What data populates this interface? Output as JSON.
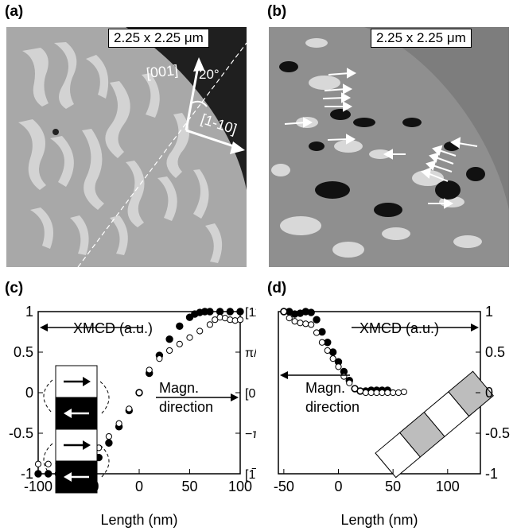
{
  "panels": {
    "a": {
      "label": "(a)",
      "scalebar": "2.25 x 2.25 μm",
      "axis_001": "[001]",
      "axis_1m10": "[1-10]",
      "angle": "20°"
    },
    "b": {
      "label": "(b)",
      "scalebar": "2.25 x 2.25 μm"
    },
    "c": {
      "label": "(c)"
    },
    "d": {
      "label": "(d)"
    }
  },
  "chart_data": [
    {
      "type": "scatter",
      "panel": "c",
      "xlabel": "Length (nm)",
      "xlim": [
        -100,
        100
      ],
      "ylim": [
        -1,
        1
      ],
      "x_ticks": [
        "-100",
        "-50",
        "0",
        "50",
        "100"
      ],
      "y_ticks_left": [
        "-1",
        "-0.5",
        "0",
        "0.5",
        "1"
      ],
      "y_ticks_right": [
        "[1̅10]",
        "−π/4",
        "[001]",
        "π/4",
        "[11̅0]"
      ],
      "annotations": [
        "XMCD (a.u.)",
        "Magn.",
        "direction"
      ],
      "series": [
        {
          "marker": "filled",
          "x": [
            -100,
            -90,
            -80,
            -70,
            -65,
            -60,
            -55,
            -50,
            -45,
            -40,
            -30,
            -20,
            -10,
            0,
            10,
            20,
            30,
            40,
            50,
            55,
            60,
            65,
            70,
            80,
            90,
            100
          ],
          "y": [
            -1,
            -1,
            -1,
            -1,
            -1,
            -1,
            -0.99,
            -0.95,
            -0.88,
            -0.8,
            -0.62,
            -0.42,
            -0.22,
            0,
            0.24,
            0.46,
            0.66,
            0.82,
            0.93,
            0.97,
            0.99,
            1,
            1,
            1,
            1,
            1
          ]
        },
        {
          "marker": "open",
          "x": [
            -100,
            -90,
            -80,
            -70,
            -65,
            -60,
            -55,
            -50,
            -45,
            -40,
            -30,
            -20,
            -10,
            0,
            10,
            20,
            30,
            40,
            50,
            60,
            70,
            75,
            80,
            85,
            90,
            95,
            100
          ],
          "y": [
            -0.88,
            -0.88,
            -0.87,
            -0.9,
            -0.92,
            -0.88,
            -0.84,
            -0.8,
            -0.74,
            -0.68,
            -0.54,
            -0.38,
            -0.2,
            0,
            0.28,
            0.42,
            0.52,
            0.6,
            0.68,
            0.76,
            0.84,
            0.9,
            0.93,
            0.92,
            0.9,
            0.89,
            0.9
          ]
        }
      ]
    },
    {
      "type": "scatter",
      "panel": "d",
      "xlabel": "Length (nm)",
      "xlim": [
        -55,
        130
      ],
      "ylim": [
        -1,
        1
      ],
      "x_ticks": [
        "-50",
        "0",
        "50",
        "100"
      ],
      "y_ticks_right": [
        "-1",
        "-0.5",
        "0",
        "0.5",
        "1"
      ],
      "annotations": [
        "XMCD (a.u.)",
        "Magn.",
        "direction"
      ],
      "series": [
        {
          "marker": "filled",
          "x": [
            -50,
            -45,
            -40,
            -35,
            -30,
            -25,
            -20,
            -15,
            -10,
            -5,
            0,
            5,
            10,
            15,
            20,
            25,
            30,
            35,
            40,
            45
          ],
          "y": [
            1,
            1,
            0.97,
            0.98,
            1,
            0.99,
            0.9,
            0.75,
            0.62,
            0.5,
            0.38,
            0.26,
            0.15,
            0.05,
            0.02,
            0.02,
            0.03,
            0.03,
            0.03,
            0.03
          ]
        },
        {
          "marker": "open",
          "x": [
            -50,
            -45,
            -40,
            -35,
            -30,
            -25,
            -20,
            -15,
            -10,
            -5,
            0,
            5,
            10,
            15,
            20,
            25,
            30,
            35,
            40,
            45,
            50,
            55,
            60
          ],
          "y": [
            1,
            0.92,
            0.88,
            0.86,
            0.85,
            0.84,
            0.74,
            0.62,
            0.52,
            0.42,
            0.32,
            0.2,
            0.12,
            0.05,
            0.02,
            0.0,
            0.0,
            0.0,
            0.0,
            0.0,
            0.0,
            0.0,
            0.01
          ]
        }
      ]
    }
  ],
  "colors": {
    "ink": "#000000",
    "panel_a_dark": "#1a1a1a",
    "panel_b_bg": "#8a8a8a",
    "panel_a_bg": "#a9a9a9",
    "domain_grey": "#bdbdbd"
  }
}
